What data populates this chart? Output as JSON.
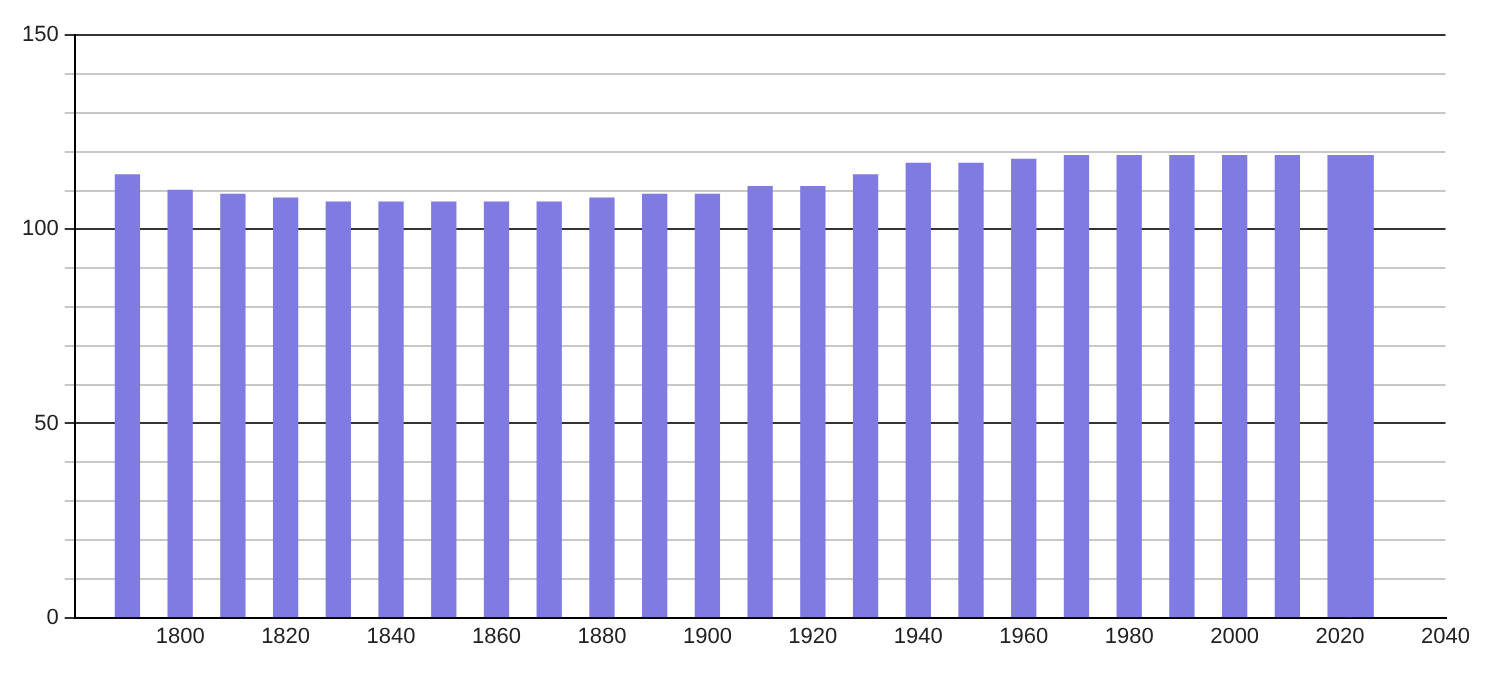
{
  "chart_data": {
    "type": "bar",
    "x": [
      1790,
      1800,
      1810,
      1820,
      1830,
      1840,
      1850,
      1860,
      1870,
      1880,
      1890,
      1900,
      1910,
      1920,
      1930,
      1940,
      1950,
      1960,
      1970,
      1980,
      1990,
      2000,
      2010,
      2020,
      2024
    ],
    "values": [
      114,
      110,
      109,
      108,
      107,
      107,
      107,
      107,
      107,
      108,
      109,
      109,
      111,
      111,
      114,
      117,
      117,
      118,
      119,
      119,
      119,
      119,
      119,
      119,
      119
    ],
    "color": "#7f7be3",
    "xlim": [
      1780,
      2040
    ],
    "xticks": [
      1800,
      1820,
      1840,
      1860,
      1880,
      1900,
      1920,
      1940,
      1960,
      1980,
      2000,
      2020,
      2040
    ],
    "ylim": [
      0,
      150
    ],
    "yticks": [
      0,
      {
        "value": 10,
        "label": null
      },
      {
        "value": 20,
        "label": null
      },
      {
        "value": 30,
        "label": null
      },
      {
        "value": 40,
        "label": null
      },
      50,
      {
        "value": 60,
        "label": null
      },
      {
        "value": 70,
        "label": null
      },
      {
        "value": 80,
        "label": null
      },
      {
        "value": 90,
        "label": null
      },
      100,
      {
        "value": 110,
        "label": null
      },
      {
        "value": 120,
        "label": null
      },
      {
        "value": 130,
        "label": null
      },
      {
        "value": 140,
        "label": null
      },
      150
    ],
    "grid": "y",
    "legend": false
  }
}
